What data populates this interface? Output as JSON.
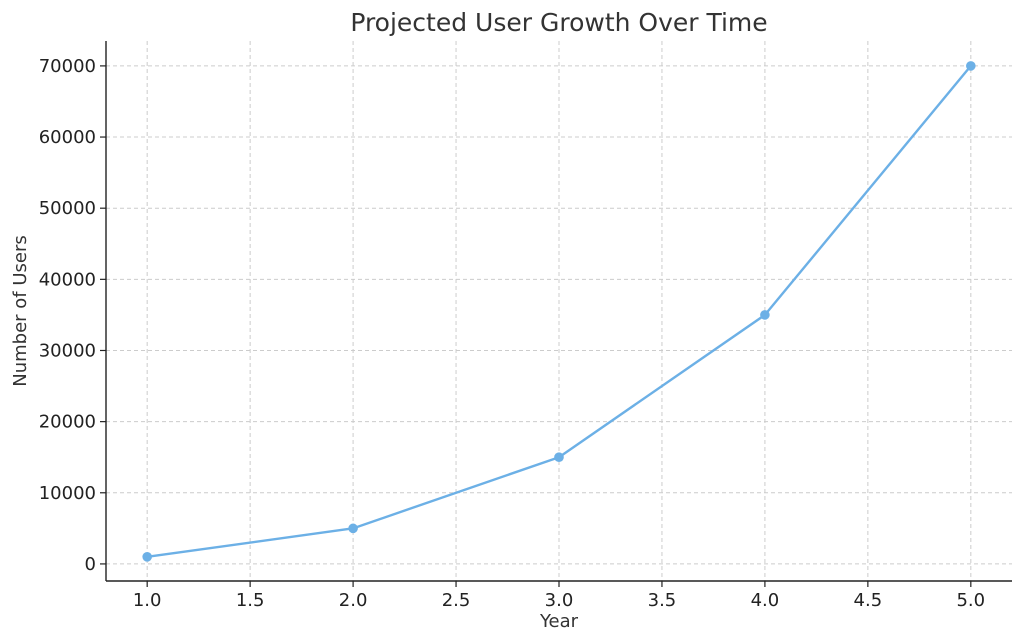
{
  "chart_data": {
    "type": "line",
    "title": "Projected User Growth Over Time",
    "xlabel": "Year",
    "ylabel": "Number of Users",
    "x": [
      1,
      2,
      3,
      4,
      5
    ],
    "series": [
      {
        "values": [
          1000,
          5000,
          15000,
          35000,
          70000
        ],
        "color": "#6cb0e6"
      }
    ],
    "xlim": [
      0.8,
      5.2
    ],
    "ylim": [
      -2400,
      73500
    ],
    "xticks": [
      1.0,
      1.5,
      2.0,
      2.5,
      3.0,
      3.5,
      4.0,
      4.5,
      5.0
    ],
    "xtick_labels": [
      "1.0",
      "1.5",
      "2.0",
      "2.5",
      "3.0",
      "3.5",
      "4.0",
      "4.5",
      "5.0"
    ],
    "yticks": [
      0,
      10000,
      20000,
      30000,
      40000,
      50000,
      60000,
      70000
    ],
    "ytick_labels": [
      "0",
      "10000",
      "20000",
      "30000",
      "40000",
      "50000",
      "60000",
      "70000"
    ],
    "grid": true,
    "markers": true
  }
}
